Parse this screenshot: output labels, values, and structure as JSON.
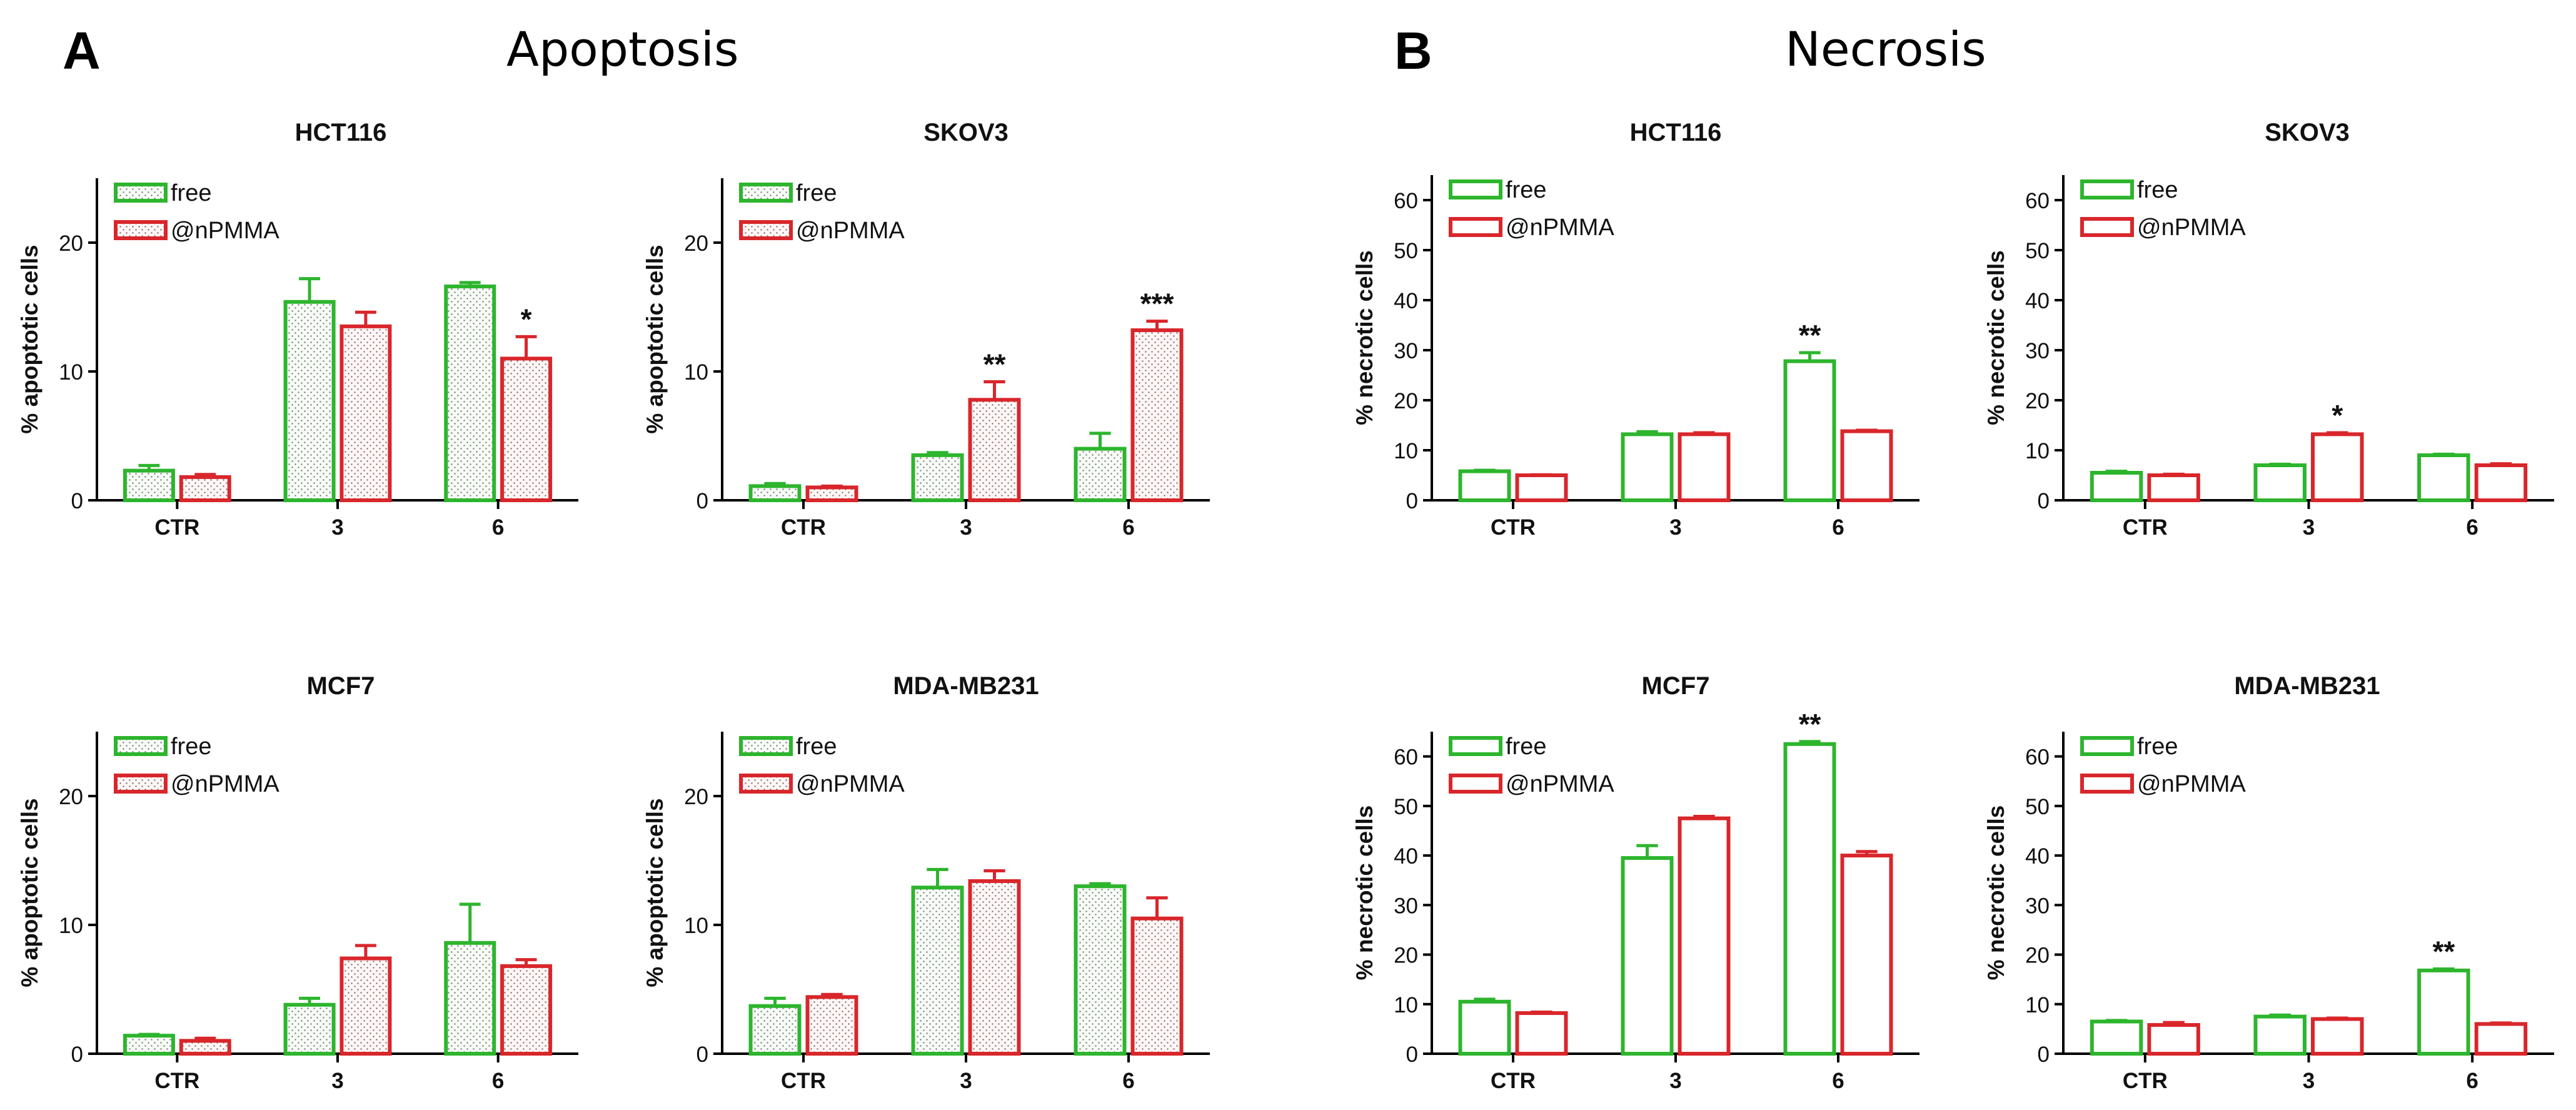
{
  "figure": {
    "panel_a": {
      "letter": "A",
      "title": "Apoptosis"
    },
    "panel_b": {
      "letter": "B",
      "title": "Necrosis"
    }
  },
  "colors": {
    "free": "#2db52d",
    "nPMMA": "#d9262b",
    "axis": "#000000"
  },
  "chart_data": [
    {
      "type": "bar",
      "panel": "A",
      "title": "HCT116",
      "ylabel": "% apoptotic cells",
      "ylim": [
        0,
        25
      ],
      "yticks": [
        0,
        10,
        20
      ],
      "categories": [
        "CTR",
        "3",
        "6"
      ],
      "pattern": "dotted",
      "series": [
        {
          "name": "free",
          "color": "#2db52d",
          "values": [
            2.3,
            15.4,
            16.6
          ],
          "errors": [
            0.4,
            1.8,
            0.3
          ]
        },
        {
          "name": "@nPMMA",
          "color": "#d9262b",
          "values": [
            1.8,
            13.5,
            11.0
          ],
          "errors": [
            0.2,
            1.1,
            1.7
          ]
        }
      ],
      "annotations": [
        {
          "category": 2,
          "series": 1,
          "text": "*"
        }
      ]
    },
    {
      "type": "bar",
      "panel": "A",
      "title": "SKOV3",
      "ylabel": "% apoptotic cells",
      "ylim": [
        0,
        25
      ],
      "yticks": [
        0,
        10,
        20
      ],
      "categories": [
        "CTR",
        "3",
        "6"
      ],
      "pattern": "dotted",
      "series": [
        {
          "name": "free",
          "color": "#2db52d",
          "values": [
            1.1,
            3.5,
            4.0
          ],
          "errors": [
            0.2,
            0.2,
            1.2
          ]
        },
        {
          "name": "@nPMMA",
          "color": "#d9262b",
          "values": [
            1.0,
            7.8,
            13.2
          ],
          "errors": [
            0.1,
            1.4,
            0.7
          ]
        }
      ],
      "annotations": [
        {
          "category": 1,
          "series": 1,
          "text": "**"
        },
        {
          "category": 2,
          "series": 1,
          "text": "***"
        }
      ]
    },
    {
      "type": "bar",
      "panel": "A",
      "title": "MCF7",
      "ylabel": "% apoptotic cells",
      "ylim": [
        0,
        25
      ],
      "yticks": [
        0,
        10,
        20
      ],
      "categories": [
        "CTR",
        "3",
        "6"
      ],
      "pattern": "dotted",
      "series": [
        {
          "name": "free",
          "color": "#2db52d",
          "values": [
            1.4,
            3.8,
            8.6
          ],
          "errors": [
            0.1,
            0.5,
            3.0
          ]
        },
        {
          "name": "@nPMMA",
          "color": "#d9262b",
          "values": [
            1.0,
            7.4,
            6.8
          ],
          "errors": [
            0.2,
            1.0,
            0.5
          ]
        }
      ],
      "annotations": []
    },
    {
      "type": "bar",
      "panel": "A",
      "title": "MDA-MB231",
      "ylabel": "% apoptotic cells",
      "ylim": [
        0,
        25
      ],
      "yticks": [
        0,
        10,
        20
      ],
      "categories": [
        "CTR",
        "3",
        "6"
      ],
      "pattern": "dotted",
      "series": [
        {
          "name": "free",
          "color": "#2db52d",
          "values": [
            3.7,
            12.9,
            13.0
          ],
          "errors": [
            0.6,
            1.4,
            0.2
          ]
        },
        {
          "name": "@nPMMA",
          "color": "#d9262b",
          "values": [
            4.4,
            13.4,
            10.5
          ],
          "errors": [
            0.2,
            0.8,
            1.6
          ]
        }
      ],
      "annotations": []
    },
    {
      "type": "bar",
      "panel": "B",
      "title": "HCT116",
      "ylabel": "% necrotic cells",
      "ylim": [
        0,
        65
      ],
      "yticks": [
        0,
        10,
        20,
        30,
        40,
        50,
        60
      ],
      "categories": [
        "CTR",
        "3",
        "6"
      ],
      "pattern": "open",
      "series": [
        {
          "name": "free",
          "color": "#2db52d",
          "values": [
            5.8,
            13.2,
            27.8
          ],
          "errors": [
            0.2,
            0.5,
            1.7
          ]
        },
        {
          "name": "@nPMMA",
          "color": "#d9262b",
          "values": [
            5.0,
            13.2,
            13.8
          ],
          "errors": [
            0.1,
            0.3,
            0.2
          ]
        }
      ],
      "annotations": [
        {
          "category": 2,
          "series": 0,
          "text": "**"
        }
      ]
    },
    {
      "type": "bar",
      "panel": "B",
      "title": "SKOV3",
      "ylabel": "% necrotic cells",
      "ylim": [
        0,
        65
      ],
      "yticks": [
        0,
        10,
        20,
        30,
        40,
        50,
        60
      ],
      "categories": [
        "CTR",
        "3",
        "6"
      ],
      "pattern": "open",
      "series": [
        {
          "name": "free",
          "color": "#2db52d",
          "values": [
            5.5,
            7.0,
            9.0
          ],
          "errors": [
            0.3,
            0.2,
            0.2
          ]
        },
        {
          "name": "@nPMMA",
          "color": "#d9262b",
          "values": [
            5.0,
            13.2,
            7.0
          ],
          "errors": [
            0.2,
            0.3,
            0.3
          ]
        }
      ],
      "annotations": [
        {
          "category": 1,
          "series": 1,
          "text": "*"
        }
      ]
    },
    {
      "type": "bar",
      "panel": "B",
      "title": "MCF7",
      "ylabel": "% necrotic cells",
      "ylim": [
        0,
        65
      ],
      "yticks": [
        0,
        10,
        20,
        30,
        40,
        50,
        60
      ],
      "categories": [
        "CTR",
        "3",
        "6"
      ],
      "pattern": "open",
      "series": [
        {
          "name": "free",
          "color": "#2db52d",
          "values": [
            10.5,
            39.5,
            62.5
          ],
          "errors": [
            0.5,
            2.5,
            0.5
          ]
        },
        {
          "name": "@nPMMA",
          "color": "#d9262b",
          "values": [
            8.2,
            47.5,
            40.0
          ],
          "errors": [
            0.2,
            0.4,
            0.8
          ]
        }
      ],
      "annotations": [
        {
          "category": 2,
          "series": 0,
          "text": "**"
        }
      ]
    },
    {
      "type": "bar",
      "panel": "B",
      "title": "MDA-MB231",
      "ylabel": "% necrotic cells",
      "ylim": [
        0,
        65
      ],
      "yticks": [
        0,
        10,
        20,
        30,
        40,
        50,
        60
      ],
      "categories": [
        "CTR",
        "3",
        "6"
      ],
      "pattern": "open",
      "series": [
        {
          "name": "free",
          "color": "#2db52d",
          "values": [
            6.5,
            7.5,
            16.8
          ],
          "errors": [
            0.2,
            0.3,
            0.3
          ]
        },
        {
          "name": "@nPMMA",
          "color": "#d9262b",
          "values": [
            5.8,
            7.0,
            6.0
          ],
          "errors": [
            0.5,
            0.2,
            0.2
          ]
        }
      ],
      "annotations": [
        {
          "category": 2,
          "series": 0,
          "text": "**"
        }
      ]
    }
  ]
}
